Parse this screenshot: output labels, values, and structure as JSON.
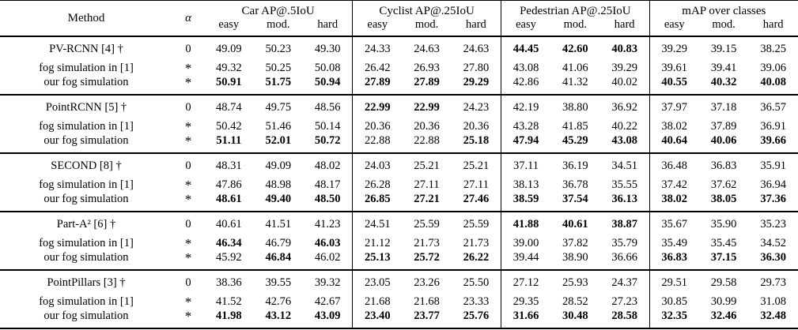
{
  "page": {
    "background_color": "#ffffff",
    "text_color": "#000000",
    "rule_color": "#000000"
  },
  "table": {
    "headers": {
      "method": "Method",
      "alpha": "α",
      "groups": [
        {
          "label": "Car AP@.5IoU",
          "sub": [
            "easy",
            "mod.",
            "hard"
          ]
        },
        {
          "label": "Cyclist AP@.25IoU",
          "sub": [
            "easy",
            "mod.",
            "hard"
          ]
        },
        {
          "label": "Pedestrian AP@.25IoU",
          "sub": [
            "easy",
            "mod.",
            "hard"
          ]
        },
        {
          "label": "mAP over classes",
          "sub": [
            "easy",
            "mod.",
            "hard"
          ]
        }
      ]
    },
    "blocks": [
      {
        "rows": [
          {
            "method": "PV-RCNN [4] †",
            "alpha": "0",
            "values": [
              "49.09",
              "50.23",
              "49.30",
              "24.33",
              "24.63",
              "24.63",
              "44.45",
              "42.60",
              "40.83",
              "39.29",
              "39.15",
              "38.25"
            ],
            "bold": [
              0,
              0,
              0,
              0,
              0,
              0,
              1,
              1,
              1,
              0,
              0,
              0
            ]
          },
          {
            "method": "fog simulation in [1]",
            "alpha": "*",
            "values": [
              "49.32",
              "50.25",
              "50.08",
              "26.42",
              "26.93",
              "27.80",
              "43.08",
              "41.06",
              "39.29",
              "39.61",
              "39.41",
              "39.06"
            ],
            "bold": [
              0,
              0,
              0,
              0,
              0,
              0,
              0,
              0,
              0,
              0,
              0,
              0
            ]
          },
          {
            "method": "our fog simulation",
            "alpha": "*",
            "values": [
              "50.91",
              "51.75",
              "50.94",
              "27.89",
              "27.89",
              "29.29",
              "42.86",
              "41.32",
              "40.02",
              "40.55",
              "40.32",
              "40.08"
            ],
            "bold": [
              1,
              1,
              1,
              1,
              1,
              1,
              0,
              0,
              0,
              1,
              1,
              1
            ]
          }
        ]
      },
      {
        "rows": [
          {
            "method": "PointRCNN [5] †",
            "alpha": "0",
            "values": [
              "48.74",
              "49.75",
              "48.56",
              "22.99",
              "22.99",
              "24.23",
              "42.19",
              "38.80",
              "36.92",
              "37.97",
              "37.18",
              "36.57"
            ],
            "bold": [
              0,
              0,
              0,
              1,
              1,
              0,
              0,
              0,
              0,
              0,
              0,
              0
            ]
          },
          {
            "method": "fog simulation in [1]",
            "alpha": "*",
            "values": [
              "50.42",
              "51.46",
              "50.14",
              "20.36",
              "20.36",
              "20.36",
              "43.28",
              "41.85",
              "40.22",
              "38.02",
              "37.89",
              "36.91"
            ],
            "bold": [
              0,
              0,
              0,
              0,
              0,
              0,
              0,
              0,
              0,
              0,
              0,
              0
            ]
          },
          {
            "method": "our fog simulation",
            "alpha": "*",
            "values": [
              "51.11",
              "52.01",
              "50.72",
              "22.88",
              "22.88",
              "25.18",
              "47.94",
              "45.29",
              "43.08",
              "40.64",
              "40.06",
              "39.66"
            ],
            "bold": [
              1,
              1,
              1,
              0,
              0,
              1,
              1,
              1,
              1,
              1,
              1,
              1
            ]
          }
        ]
      },
      {
        "rows": [
          {
            "method": "SECOND [8] †",
            "alpha": "0",
            "values": [
              "48.31",
              "49.09",
              "48.02",
              "24.03",
              "25.21",
              "25.21",
              "37.11",
              "36.19",
              "34.51",
              "36.48",
              "36.83",
              "35.91"
            ],
            "bold": [
              0,
              0,
              0,
              0,
              0,
              0,
              0,
              0,
              0,
              0,
              0,
              0
            ]
          },
          {
            "method": "fog simulation in [1]",
            "alpha": "*",
            "values": [
              "47.86",
              "48.98",
              "48.17",
              "26.28",
              "27.11",
              "27.11",
              "38.13",
              "36.78",
              "35.55",
              "37.42",
              "37.62",
              "36.94"
            ],
            "bold": [
              0,
              0,
              0,
              0,
              0,
              0,
              0,
              0,
              0,
              0,
              0,
              0
            ]
          },
          {
            "method": "our fog simulation",
            "alpha": "*",
            "values": [
              "48.61",
              "49.40",
              "48.50",
              "26.85",
              "27.21",
              "27.46",
              "38.59",
              "37.54",
              "36.13",
              "38.02",
              "38.05",
              "37.36"
            ],
            "bold": [
              1,
              1,
              1,
              1,
              1,
              1,
              1,
              1,
              1,
              1,
              1,
              1
            ]
          }
        ]
      },
      {
        "rows": [
          {
            "method": "Part-A² [6] †",
            "alpha": "0",
            "values": [
              "40.61",
              "41.51",
              "41.23",
              "24.51",
              "25.59",
              "25.59",
              "41.88",
              "40.61",
              "38.87",
              "35.67",
              "35.90",
              "35.23"
            ],
            "bold": [
              0,
              0,
              0,
              0,
              0,
              0,
              1,
              1,
              1,
              0,
              0,
              0
            ]
          },
          {
            "method": "fog simulation in [1]",
            "alpha": "*",
            "values": [
              "46.34",
              "46.79",
              "46.03",
              "21.12",
              "21.73",
              "21.73",
              "39.00",
              "37.82",
              "35.79",
              "35.49",
              "35.45",
              "34.52"
            ],
            "bold": [
              1,
              0,
              1,
              0,
              0,
              0,
              0,
              0,
              0,
              0,
              0,
              0
            ]
          },
          {
            "method": "our fog simulation",
            "alpha": "*",
            "values": [
              "45.92",
              "46.84",
              "46.02",
              "25.13",
              "25.72",
              "26.22",
              "39.44",
              "38.90",
              "36.66",
              "36.83",
              "37.15",
              "36.30"
            ],
            "bold": [
              0,
              1,
              0,
              1,
              1,
              1,
              0,
              0,
              0,
              1,
              1,
              1
            ]
          }
        ]
      },
      {
        "rows": [
          {
            "method": "PointPillars [3] †",
            "alpha": "0",
            "values": [
              "38.36",
              "39.55",
              "39.32",
              "23.05",
              "23.26",
              "25.50",
              "27.12",
              "25.93",
              "24.37",
              "29.51",
              "29.58",
              "29.73"
            ],
            "bold": [
              0,
              0,
              0,
              0,
              0,
              0,
              0,
              0,
              0,
              0,
              0,
              0
            ]
          },
          {
            "method": "fog simulation in [1]",
            "alpha": "*",
            "values": [
              "41.52",
              "42.76",
              "42.67",
              "21.68",
              "21.68",
              "23.33",
              "29.35",
              "28.52",
              "27.23",
              "30.85",
              "30.99",
              "31.08"
            ],
            "bold": [
              0,
              0,
              0,
              0,
              0,
              0,
              0,
              0,
              0,
              0,
              0,
              0
            ]
          },
          {
            "method": "our fog simulation",
            "alpha": "*",
            "values": [
              "41.98",
              "43.12",
              "43.09",
              "23.40",
              "23.77",
              "25.76",
              "31.66",
              "30.48",
              "28.58",
              "32.35",
              "32.46",
              "32.48"
            ],
            "bold": [
              1,
              1,
              1,
              1,
              1,
              1,
              1,
              1,
              1,
              1,
              1,
              1
            ]
          }
        ]
      }
    ]
  }
}
